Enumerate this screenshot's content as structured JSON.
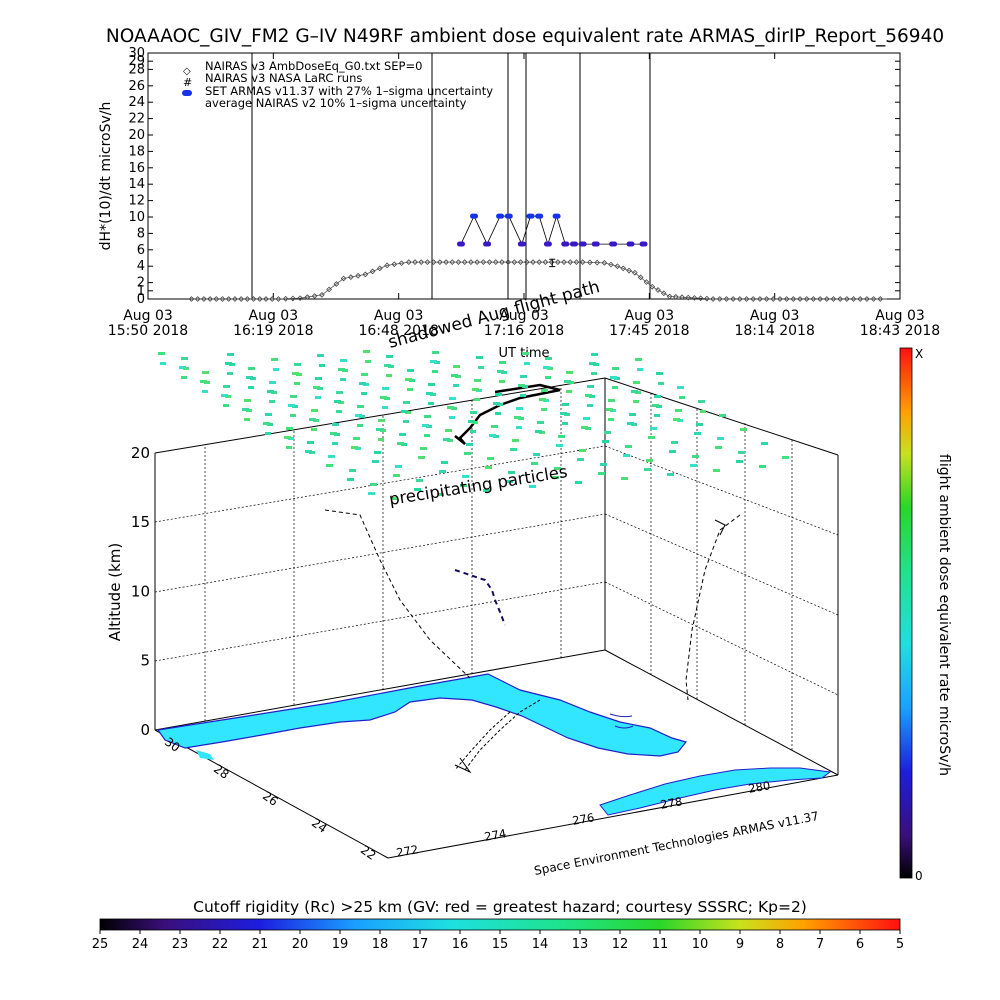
{
  "chart_data": [
    {
      "type": "scatter",
      "title": "NOAAAOC_GIV_FM2 G–IV    N49RF   ambient dose equivalent rate ARMAS_dirIP_Report_56940",
      "ylabel": "dH*(10)/dt microSv/h",
      "xlabel": "UT time",
      "ylim": [
        0,
        30
      ],
      "yticks": [
        0,
        1,
        2,
        4,
        6,
        8,
        10,
        12,
        14,
        16,
        18,
        20,
        22,
        24,
        26,
        28,
        29,
        30
      ],
      "xticks": [
        {
          "date": "Aug 03",
          "time": "15:50 2018"
        },
        {
          "date": "Aug 03",
          "time": "16:19 2018"
        },
        {
          "date": "Aug 03",
          "time": "16:48 2018"
        },
        {
          "date": "Aug 03",
          "time": "17:16 2018"
        },
        {
          "date": "Aug 03",
          "time": "17:45 2018"
        },
        {
          "date": "Aug 03",
          "time": "18:14 2018"
        },
        {
          "date": "Aug 03",
          "time": "18:43 2018"
        }
      ],
      "xrange": [
        "15:50",
        "18:43"
      ],
      "legend": {
        "placement": "top-left",
        "entries": [
          {
            "symbol": "◇",
            "label": "NAIRAS v3 AmbDoseEq_G0.txt SEP=0"
          },
          {
            "symbol": "#",
            "label": "NAIRAS v3 NASA LaRC runs"
          },
          {
            "symbol": "▬",
            "label": "SET ARMAS v11.37 with 27% 1–sigma uncertainty"
          },
          {
            "symbol": "",
            "label": "average NAIRAS v2 10% 1–sigma uncertainty"
          }
        ]
      },
      "series": [
        {
          "name": "NAIRAS v3 AmbDoseEq_G0.txt SEP=0",
          "x": [
            "16:00",
            "16:10",
            "16:20",
            "16:25",
            "16:30",
            "16:35",
            "16:40",
            "16:45",
            "16:50",
            "17:00",
            "17:10",
            "17:20",
            "17:30",
            "17:35",
            "17:38",
            "17:42",
            "17:46",
            "17:50",
            "18:00",
            "18:20",
            "18:40"
          ],
          "values": [
            0,
            0,
            0,
            0.1,
            0.5,
            2.5,
            3.0,
            4.1,
            4.5,
            4.5,
            4.5,
            4.5,
            4.5,
            4.4,
            4.0,
            3.2,
            1.5,
            0.3,
            0,
            0,
            0
          ]
        },
        {
          "name": "SET ARMAS v11.37 with 27% 1–sigma uncertainty",
          "x": [
            "17:02",
            "17:05",
            "17:08",
            "17:11",
            "17:13",
            "17:16",
            "17:18",
            "17:20",
            "17:22",
            "17:24",
            "17:26",
            "17:28",
            "17:30",
            "17:33",
            "17:37",
            "17:41",
            "17:44"
          ],
          "values": [
            6.7,
            10.1,
            6.7,
            10.1,
            10.1,
            6.7,
            10.1,
            10.1,
            6.7,
            10.1,
            6.7,
            6.7,
            6.7,
            6.7,
            6.7,
            6.7,
            6.7
          ]
        }
      ],
      "averaged_point": {
        "x": "17:23",
        "value": 4.4,
        "error": 0.45
      }
    },
    {
      "type": "scatter",
      "title": "",
      "zlabel": "Altitude (km)",
      "zticks": [
        "0",
        "5",
        "10",
        "15",
        "20"
      ],
      "yticks": [
        "30",
        "28",
        "26",
        "24",
        "22"
      ],
      "xticks": [
        "272",
        "274",
        "276",
        "278",
        "280"
      ],
      "annotations": [
        "shadowed Aug flight path",
        "precipitating particles"
      ],
      "credit": "Space Environment Technologies ARMAS v11.37"
    },
    {
      "type": "heatmap",
      "colorbar_label": "flight ambient dose equivalent rate microSv/h",
      "colorbar_top": "X",
      "colorbar_bottom": "0",
      "rigidity_title": "Cutoff rigidity (Rc) >25 km (GV: red = greatest hazard; courtesy SSSRC; Kp=2)",
      "rigidity_ticks": [
        "25",
        "24",
        "23",
        "22",
        "21",
        "20",
        "19",
        "18",
        "17",
        "16",
        "15",
        "14",
        "13",
        "12",
        "11",
        "10",
        "9",
        "8",
        "7",
        "6",
        "5"
      ]
    }
  ],
  "colors": {
    "armas": "#1533ee",
    "armas_low": "#3a18c8",
    "nairas": "#555555",
    "land": "#33e6ff",
    "coast": "#2020c8",
    "field": "#3ddc85"
  }
}
